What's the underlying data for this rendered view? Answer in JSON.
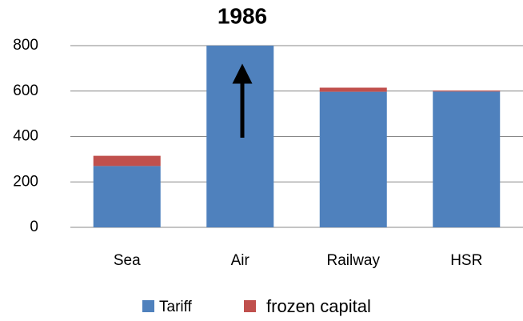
{
  "chart_data": {
    "type": "stacked_bar",
    "title": "1986",
    "categories": [
      "Sea",
      "Air",
      "Railway",
      "HSR"
    ],
    "series": [
      {
        "name": "Tariff",
        "color": "#4f81bd",
        "values": [
          270,
          800,
          597,
          598
        ]
      },
      {
        "name": "frozen capital",
        "color": "#c0504d",
        "values": [
          45,
          null,
          18,
          4
        ]
      }
    ],
    "ylim": [
      0,
      800
    ],
    "yticks": [
      0,
      200,
      400,
      600,
      800
    ],
    "grid": true,
    "legend": "bottom"
  }
}
